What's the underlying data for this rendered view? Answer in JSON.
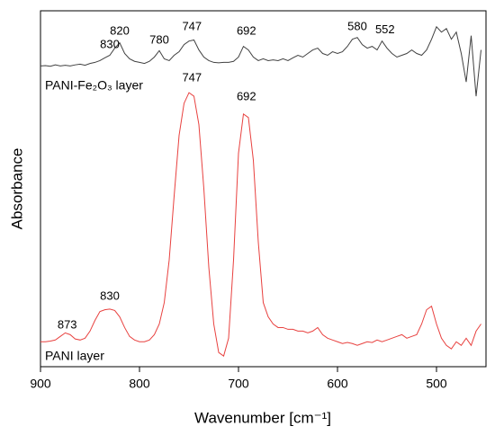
{
  "chart_data": {
    "type": "line",
    "xlabel": "Wavenumber [cm⁻¹]",
    "ylabel": "Absorbance",
    "xlim": [
      900,
      450
    ],
    "xticks": [
      900,
      800,
      700,
      600,
      500
    ],
    "ylim": [
      0,
      100
    ],
    "x": [
      900,
      895,
      890,
      885,
      880,
      875,
      870,
      865,
      860,
      855,
      850,
      845,
      840,
      835,
      830,
      825,
      820,
      815,
      810,
      805,
      800,
      795,
      790,
      785,
      780,
      775,
      770,
      765,
      760,
      755,
      750,
      745,
      740,
      735,
      730,
      725,
      720,
      715,
      710,
      705,
      700,
      695,
      690,
      685,
      680,
      675,
      670,
      665,
      660,
      655,
      650,
      645,
      640,
      635,
      630,
      625,
      620,
      615,
      610,
      605,
      600,
      595,
      590,
      585,
      580,
      575,
      570,
      565,
      560,
      555,
      550,
      545,
      540,
      535,
      530,
      525,
      520,
      515,
      510,
      505,
      500,
      495,
      490,
      485,
      480,
      475,
      470,
      465,
      460,
      455
    ],
    "series": [
      {
        "name": "PANI-Fe₂O₃ layer",
        "color": "#404040",
        "values": [
          84.5,
          84.6,
          84.4,
          84.8,
          84.5,
          84.7,
          84.5,
          84.8,
          85,
          84.7,
          85.2,
          85.5,
          86,
          86.8,
          87.5,
          89.5,
          91,
          88,
          86.5,
          85.8,
          85.5,
          85.2,
          85.8,
          87,
          88.8,
          86.5,
          86,
          87.5,
          88.5,
          90.5,
          91.5,
          91.8,
          89,
          87,
          86,
          85.5,
          85.4,
          85.5,
          85.5,
          85.8,
          87,
          90,
          89,
          87,
          86,
          86.5,
          86,
          86.2,
          86,
          86.5,
          86,
          86.8,
          87.5,
          87,
          88,
          89,
          89.5,
          88,
          87.5,
          88.5,
          88,
          88.5,
          90,
          92,
          92.5,
          90.5,
          89.5,
          90,
          89,
          91.5,
          89.5,
          88,
          87,
          87.5,
          88,
          89,
          88,
          87.5,
          89,
          92,
          95.5,
          94,
          95,
          92,
          94,
          88,
          80,
          93,
          76,
          89
        ],
        "annotations": [
          {
            "label": "830",
            "x": 830,
            "y": 90.4
          },
          {
            "label": "820",
            "x": 820,
            "y": 94.2
          },
          {
            "label": "780",
            "x": 780,
            "y": 91.7
          },
          {
            "label": "747",
            "x": 747,
            "y": 95.5
          },
          {
            "label": "692",
            "x": 692,
            "y": 94.2
          },
          {
            "label": "580",
            "x": 580,
            "y": 95.5
          },
          {
            "label": "552",
            "x": 552,
            "y": 94.6
          }
        ]
      },
      {
        "name": "PANI layer",
        "color": "#e8413f",
        "values": [
          7,
          7,
          7.2,
          7.5,
          8.5,
          9.5,
          9,
          7.8,
          7.5,
          8,
          10,
          13,
          15.5,
          16,
          16.2,
          15.8,
          14,
          11,
          8.5,
          7.5,
          7,
          7,
          7.5,
          9,
          12,
          18,
          30,
          48,
          65,
          74,
          77,
          76,
          68,
          50,
          28,
          12,
          4,
          3,
          8,
          30,
          60,
          71,
          70,
          58,
          35,
          18,
          14,
          12,
          11,
          11,
          10.5,
          10.5,
          10,
          10,
          9.5,
          10,
          11,
          9,
          8,
          7.5,
          7,
          6.5,
          6.8,
          6.5,
          6,
          6.5,
          7,
          6.8,
          7.5,
          7,
          7.5,
          8,
          8.5,
          9,
          8,
          8.5,
          9,
          12,
          16,
          17,
          12,
          8,
          6,
          5,
          7,
          6,
          8,
          6,
          10,
          12
        ],
        "annotations": [
          {
            "label": "873",
            "x": 873,
            "y": 11.6
          },
          {
            "label": "830",
            "x": 830,
            "y": 19.7
          },
          {
            "label": "747",
            "x": 747,
            "y": 81
          },
          {
            "label": "692",
            "x": 692,
            "y": 75.8
          }
        ]
      }
    ]
  }
}
